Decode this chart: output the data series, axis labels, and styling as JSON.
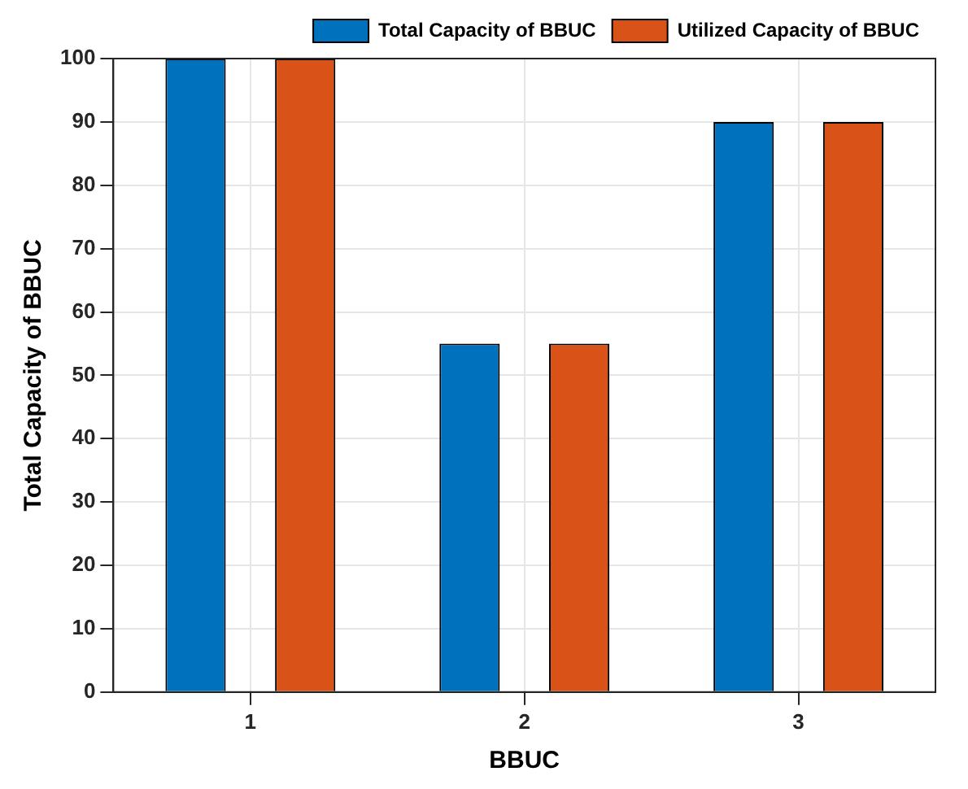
{
  "chart_data": {
    "type": "bar",
    "xlabel": "BBUC",
    "ylabel": "Total Capacity of BBUC",
    "categories": [
      "1",
      "2",
      "3"
    ],
    "series": [
      {
        "name": "Total Capacity of BBUC",
        "color": "#0072bd",
        "values": [
          100,
          55,
          90
        ]
      },
      {
        "name": "Utilized Capacity of BBUC",
        "color": "#d95319",
        "values": [
          100,
          55,
          90
        ]
      }
    ],
    "ylim": [
      0,
      100
    ],
    "yticks": [
      0,
      10,
      20,
      30,
      40,
      50,
      60,
      70,
      80,
      90,
      100
    ],
    "grid": true,
    "legend": "top right"
  }
}
